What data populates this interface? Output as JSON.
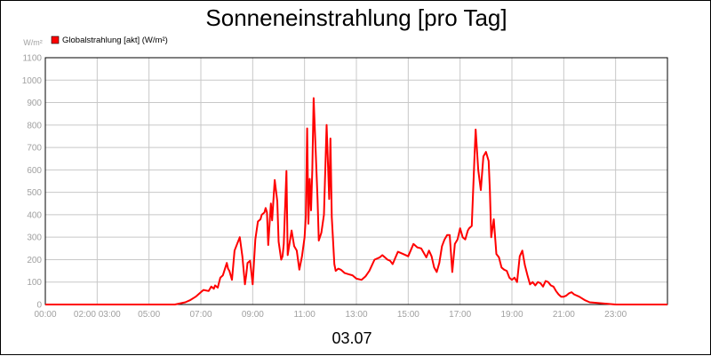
{
  "chart_data": {
    "type": "line",
    "title": "Sonneneinstrahlung [pro Tag]",
    "ylabel_unit": "W/m²",
    "xlabel": "03.07",
    "ylim": [
      0,
      1100
    ],
    "xlim_hours": [
      0,
      24
    ],
    "y_ticks": [
      0,
      100,
      200,
      300,
      400,
      500,
      600,
      700,
      800,
      900,
      1000,
      1100
    ],
    "x_tick_labels": [
      "00:00",
      "02:00 03:00",
      "05:00",
      "07:00",
      "09:00",
      "11:00",
      "13:00",
      "15:00",
      "17:00",
      "19:00",
      "21:00",
      "23:00"
    ],
    "grid": true,
    "legend_position": "top-left",
    "series": [
      {
        "name": "Globalstrahlung [akt] (W/m²)",
        "color": "#ff0000",
        "x_hours": [
          0,
          5.0,
          5.4,
          5.6,
          5.8,
          6.0,
          6.1,
          6.3,
          6.4,
          6.5,
          6.55,
          6.65,
          6.75,
          6.85,
          7.0,
          7.05,
          7.1,
          7.2,
          7.3,
          7.4,
          7.5,
          7.6,
          7.7,
          7.75,
          7.8,
          7.9,
          8.0,
          8.1,
          8.2,
          8.3,
          8.35,
          8.45,
          8.5,
          8.55,
          8.6,
          8.7,
          8.75,
          8.85,
          8.95,
          9.0,
          9.1,
          9.15,
          9.2,
          9.3,
          9.35,
          9.5,
          9.6,
          9.7,
          9.8,
          9.9,
          10.0,
          10.05,
          10.1,
          10.15,
          10.2,
          10.25,
          10.3,
          10.35,
          10.4,
          10.5,
          10.55,
          10.65,
          10.75,
          10.85,
          10.95,
          11.0,
          11.05,
          11.15,
          11.2,
          11.3,
          11.4,
          11.55,
          11.7,
          11.85,
          12.0,
          12.2,
          12.35,
          12.5,
          12.7,
          12.9,
          13.0,
          13.1,
          13.2,
          13.3,
          13.4,
          13.6,
          13.8,
          14.0,
          14.2,
          14.35,
          14.5,
          14.7,
          14.8,
          14.9,
          15.0,
          15.1,
          15.2,
          15.3,
          15.4,
          15.5,
          15.6,
          15.7,
          15.8,
          15.9,
          16.0,
          16.1,
          16.2,
          16.3,
          16.35,
          16.45,
          16.55,
          16.6,
          16.7,
          16.8,
          16.9,
          17.0,
          17.1,
          17.15,
          17.2,
          17.3,
          17.4,
          17.5,
          17.6,
          17.7,
          17.8,
          17.9,
          18.0,
          18.1,
          18.2,
          18.3,
          18.4,
          18.5,
          18.6,
          18.7,
          18.8,
          18.9,
          19.0,
          19.1,
          19.2,
          19.3,
          19.4,
          19.5,
          19.6,
          19.7,
          19.8,
          19.9,
          20.0,
          20.1,
          20.2,
          20.3,
          20.4,
          20.6,
          20.8,
          21.0,
          21.5,
          22.0,
          24.0
        ],
        "values": [
          0,
          0,
          10,
          20,
          35,
          55,
          65,
          60,
          80,
          70,
          85,
          75,
          120,
          130,
          185,
          160,
          150,
          110,
          240,
          270,
          300,
          215,
          90,
          130,
          185,
          195,
          90,
          290,
          370,
          380,
          400,
          410,
          430,
          410,
          265,
          450,
          375,
          555,
          460,
          280,
          200,
          215,
          270,
          595,
          220,
          330,
          260,
          240,
          155,
          215,
          300,
          390,
          785,
          360,
          560,
          420,
          600,
          920,
          775,
          470,
          285,
          320,
          400,
          800,
          470,
          740,
          390,
          180,
          150,
          160,
          155,
          140,
          135,
          130,
          115,
          110,
          125,
          150,
          200,
          210,
          220,
          210,
          200,
          195,
          180,
          235,
          225,
          215,
          270,
          255,
          250,
          210,
          240,
          215,
          165,
          145,
          185,
          260,
          290,
          310,
          310,
          145,
          270,
          290,
          340,
          300,
          290,
          330,
          340,
          350,
          640,
          780,
          600,
          510,
          660,
          680,
          640,
          510,
          300,
          380,
          225,
          210,
          165,
          155,
          150,
          120,
          110,
          120,
          100,
          215,
          240,
          175,
          130,
          90,
          100,
          85,
          100,
          95,
          80,
          105,
          100,
          85,
          80,
          60,
          45,
          35,
          35,
          40,
          50,
          55,
          45,
          35,
          20,
          10,
          5,
          0,
          0
        ]
      }
    ]
  }
}
